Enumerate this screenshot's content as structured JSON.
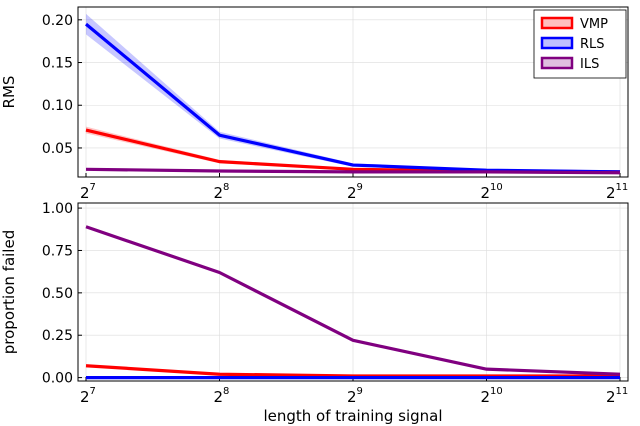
{
  "chart_data": [
    {
      "type": "line",
      "x": [
        128,
        256,
        512,
        1024,
        2048
      ],
      "xticks": [
        {
          "base": "2",
          "exp": "7"
        },
        {
          "base": "2",
          "exp": "8"
        },
        {
          "base": "2",
          "exp": "9"
        },
        {
          "base": "2",
          "exp": "10"
        },
        {
          "base": "2",
          "exp": "11"
        }
      ],
      "xscale": "log2",
      "ylabel": "RMS",
      "ylim": [
        0.016,
        0.215
      ],
      "yticks": [
        "0.05",
        "0.10",
        "0.15",
        "0.20"
      ],
      "ytick_values": [
        0.05,
        0.1,
        0.15,
        0.2
      ],
      "grid": true,
      "legend_position": "top-right",
      "series": [
        {
          "name": "VMP",
          "color": "#ff0000",
          "values": [
            0.071,
            0.034,
            0.025,
            0.023,
            0.022
          ],
          "band": [
            0.004,
            0.002,
            0.001,
            0.001,
            0.001
          ]
        },
        {
          "name": "RLS",
          "color": "#0000ff",
          "values": [
            0.195,
            0.065,
            0.03,
            0.024,
            0.022
          ],
          "band": [
            0.012,
            0.004,
            0.002,
            0.001,
            0.001
          ]
        },
        {
          "name": "ILS",
          "color": "#800080",
          "values": [
            0.025,
            0.023,
            0.022,
            0.022,
            0.021
          ],
          "band": [
            0.001,
            0.001,
            0.001,
            0.001,
            0.001
          ]
        }
      ]
    },
    {
      "type": "line",
      "x": [
        128,
        256,
        512,
        1024,
        2048
      ],
      "xticks": [
        {
          "base": "2",
          "exp": "7"
        },
        {
          "base": "2",
          "exp": "8"
        },
        {
          "base": "2",
          "exp": "9"
        },
        {
          "base": "2",
          "exp": "10"
        },
        {
          "base": "2",
          "exp": "11"
        }
      ],
      "xscale": "log2",
      "xlabel": "length of training signal",
      "ylabel": "proportion failed",
      "ylim": [
        -0.02,
        1.03
      ],
      "yticks": [
        "0.00",
        "0.25",
        "0.50",
        "0.75",
        "1.00"
      ],
      "ytick_values": [
        0.0,
        0.25,
        0.5,
        0.75,
        1.0
      ],
      "grid": true,
      "series": [
        {
          "color": "#ff0000",
          "values": [
            0.07,
            0.02,
            0.01,
            0.01,
            0.01
          ]
        },
        {
          "color": "#0000ff",
          "values": [
            0.0,
            0.0,
            0.0,
            0.0,
            0.0
          ]
        },
        {
          "color": "#800080",
          "values": [
            0.89,
            0.62,
            0.22,
            0.05,
            0.02
          ]
        }
      ]
    }
  ]
}
